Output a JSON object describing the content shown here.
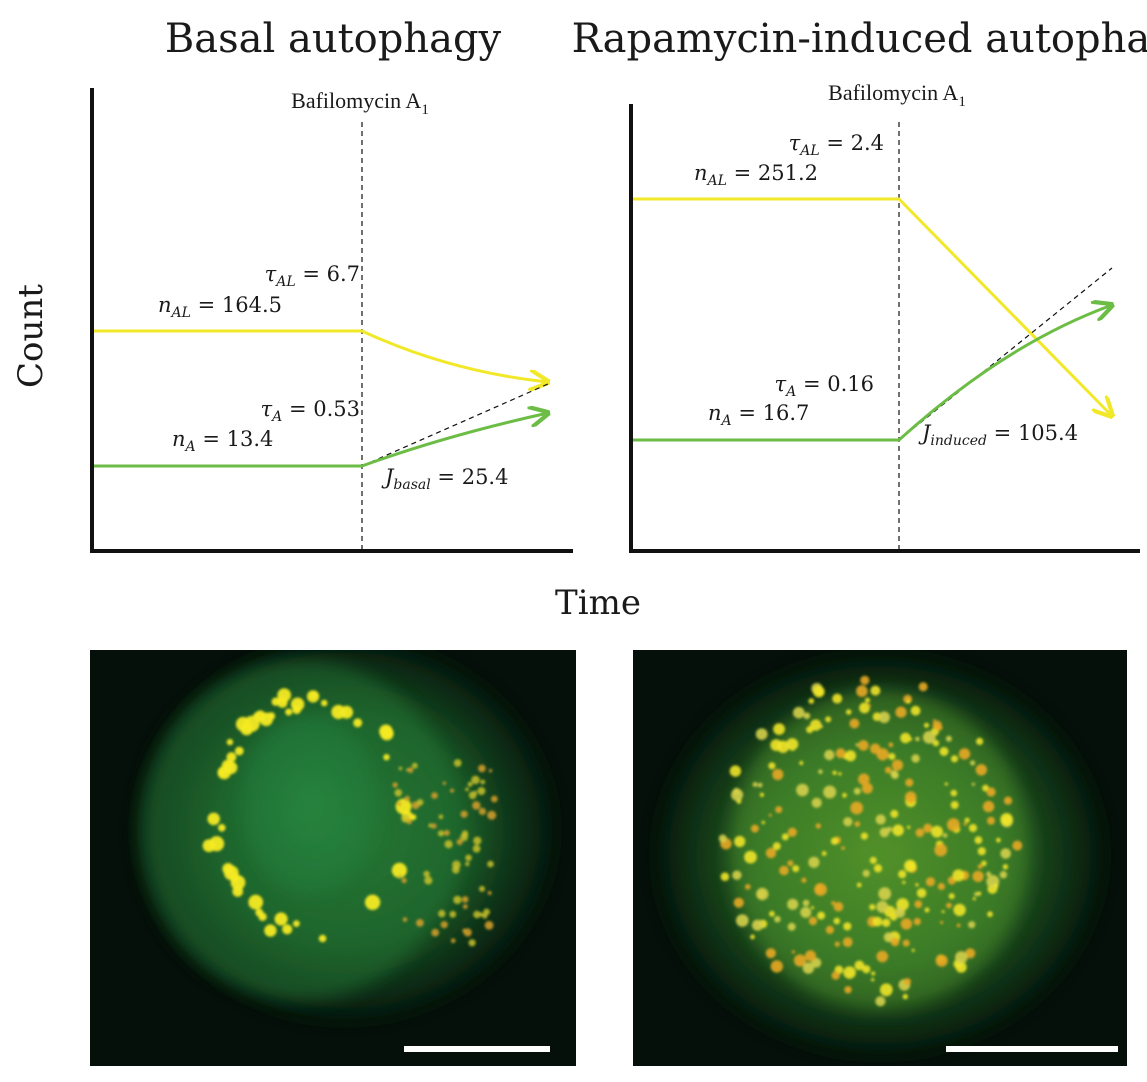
{
  "figure": {
    "panels": [
      {
        "title": "Basal autophagy",
        "intervention_label": "Bafilomycin A",
        "intervention_subscript": "1",
        "tau_AL": "6.7",
        "n_AL": "164.5",
        "tau_A": "0.53",
        "n_A": "13.4",
        "flux_subscript": "basal",
        "flux_value": "25.4"
      },
      {
        "title": "Rapamycin-induced autophagy",
        "intervention_label": "Bafilomycin A",
        "intervention_subscript": "1",
        "tau_AL": "2.4",
        "n_AL": "251.2",
        "tau_A": "0.16",
        "n_A": "16.7",
        "flux_subscript": "induced",
        "flux_value": "105.4"
      }
    ],
    "y_axis_label": "Count",
    "x_axis_label": "Time",
    "colors": {
      "autolysosome_line": "#f2e82a",
      "autophagosome_line": "#6cbd45",
      "axis": "#111111",
      "scale_bar": "#ffffff",
      "micrograph_bg": "#05100a"
    },
    "micrographs": [
      {
        "name": "basal-cell-micrograph",
        "has_scale_bar": true
      },
      {
        "name": "rapamycin-cell-micrograph",
        "has_scale_bar": true
      }
    ]
  }
}
